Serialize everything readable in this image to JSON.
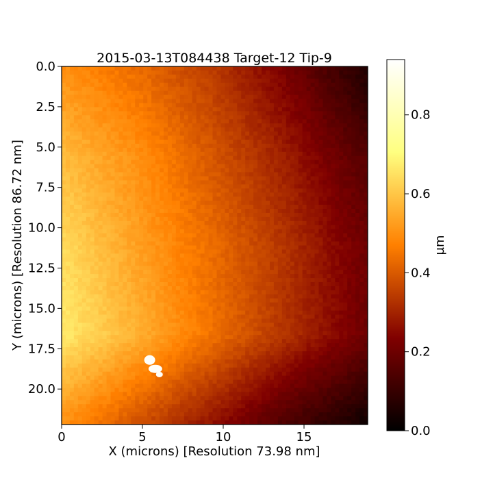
{
  "chart_data": {
    "type": "heatmap",
    "title": "2015-03-13T084438 Target-12 Tip-9",
    "xlabel": "X (microns) [Resolution 73.98 nm]",
    "ylabel": "Y (microns) [Resolution 86.72 nm]",
    "xlim": [
      0,
      18.94
    ],
    "ylim": [
      22.2,
      0
    ],
    "x_ticks": [
      0,
      5,
      10,
      15
    ],
    "y_ticks": [
      0.0,
      2.5,
      5.0,
      7.5,
      10.0,
      12.5,
      15.0,
      17.5,
      20.0
    ],
    "x_tick_labels": [
      "0",
      "5",
      "10",
      "15"
    ],
    "y_tick_labels": [
      "0.0",
      "2.5",
      "5.0",
      "7.5",
      "10.0",
      "12.5",
      "15.0",
      "17.5",
      "20.0"
    ],
    "colormap": "afmhot",
    "colorbar": {
      "label": "µm",
      "range": [
        0,
        0.94
      ],
      "ticks": [
        0.0,
        0.2,
        0.4,
        0.6,
        0.8
      ],
      "tick_labels": [
        "0.0",
        "0.2",
        "0.4",
        "0.6",
        "0.8"
      ]
    },
    "surface_heights": {
      "x_samples": [
        0,
        4.74,
        9.47,
        14.2,
        18.94
      ],
      "y_samples": [
        0,
        5.55,
        11.1,
        16.65,
        22.2
      ],
      "values": [
        [
          0.5,
          0.43,
          0.34,
          0.21,
          0.05
        ],
        [
          0.58,
          0.5,
          0.39,
          0.28,
          0.15
        ],
        [
          0.64,
          0.53,
          0.43,
          0.32,
          0.2
        ],
        [
          0.67,
          0.56,
          0.44,
          0.32,
          0.2
        ],
        [
          0.5,
          0.38,
          0.26,
          0.13,
          0.03
        ]
      ]
    },
    "feature": {
      "description": "bright particle",
      "x": 5.6,
      "y": 18.4,
      "value": 0.93
    }
  }
}
